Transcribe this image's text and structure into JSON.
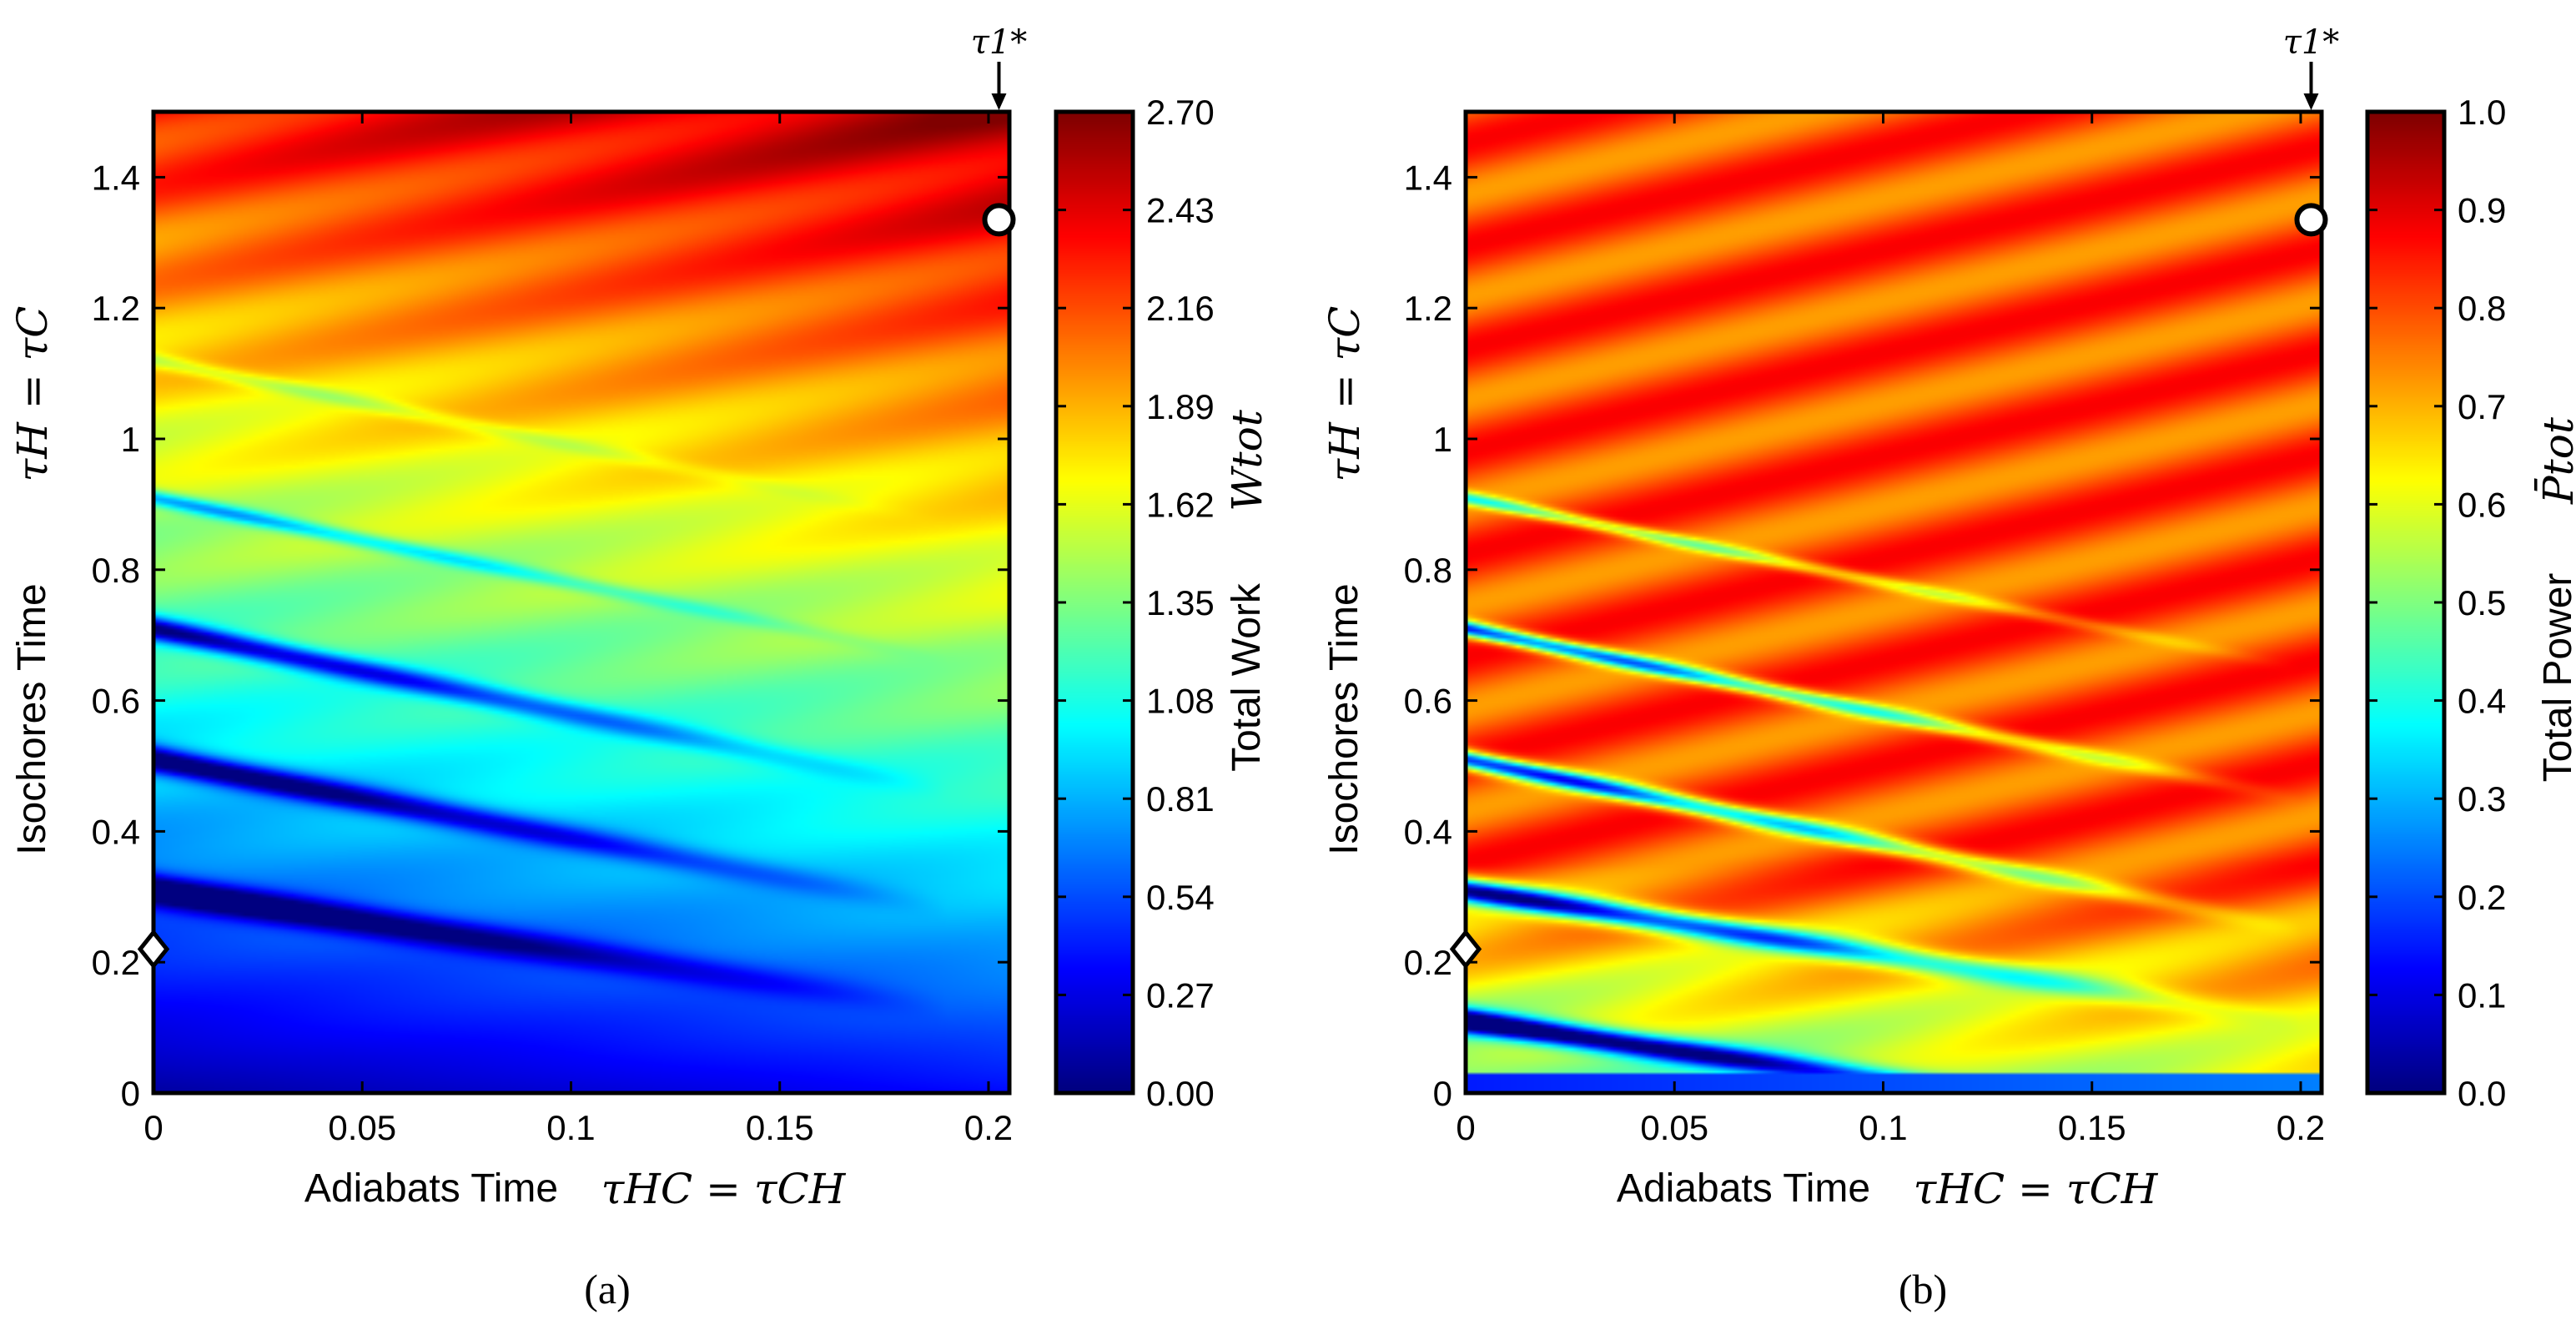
{
  "chart_data": [
    {
      "type": "heatmap",
      "panel": "(a)",
      "xlabel": "Adiabats Time",
      "xlabel_math": "τHC = τCH",
      "ylabel": "Isochores Time",
      "ylabel_math": "τH = τC",
      "xlim": [
        0,
        0.205
      ],
      "ylim": [
        0,
        1.5
      ],
      "x_ticks": [
        "0",
        "0.05",
        "0.1",
        "0.15",
        "0.2"
      ],
      "x_tick_values": [
        0,
        0.05,
        0.1,
        0.15,
        0.2
      ],
      "y_ticks": [
        "0",
        "0.2",
        "0.4",
        "0.6",
        "0.8",
        "1",
        "1.2",
        "1.4"
      ],
      "y_tick_values": [
        0,
        0.2,
        0.4,
        0.6,
        0.8,
        1.0,
        1.2,
        1.4
      ],
      "colorbar": {
        "label": "Total Work",
        "label_math": "Wtot",
        "range": [
          0,
          2.7
        ],
        "ticks": [
          "0.00",
          "0.27",
          "0.54",
          "0.81",
          "1.08",
          "1.35",
          "1.62",
          "1.89",
          "2.16",
          "2.43",
          "2.70"
        ],
        "tick_values": [
          0,
          0.27,
          0.54,
          0.81,
          1.08,
          1.35,
          1.62,
          1.89,
          2.16,
          2.43,
          2.7
        ]
      },
      "markers": [
        {
          "shape": "diamond",
          "x": 0,
          "y": 0.22
        },
        {
          "shape": "circle",
          "x": 0.2025,
          "y": 1.335
        }
      ],
      "annotation": {
        "text": "τ1*",
        "x": 0.2025
      }
    },
    {
      "type": "heatmap",
      "panel": "(b)",
      "xlabel": "Adiabats Time",
      "xlabel_math": "τHC = τCH",
      "ylabel": "Isochores Time",
      "ylabel_math": "τH = τC",
      "xlim": [
        0,
        0.205
      ],
      "ylim": [
        0,
        1.5
      ],
      "x_ticks": [
        "0",
        "0.05",
        "0.1",
        "0.15",
        "0.2"
      ],
      "x_tick_values": [
        0,
        0.05,
        0.1,
        0.15,
        0.2
      ],
      "y_ticks": [
        "0",
        "0.2",
        "0.4",
        "0.6",
        "0.8",
        "1",
        "1.2",
        "1.4"
      ],
      "y_tick_values": [
        0,
        0.2,
        0.4,
        0.6,
        0.8,
        1.0,
        1.2,
        1.4
      ],
      "colorbar": {
        "label": "Total Power",
        "label_math": "P̄tot",
        "range": [
          0,
          1.0
        ],
        "ticks": [
          "0.0",
          "0.1",
          "0.2",
          "0.3",
          "0.4",
          "0.5",
          "0.6",
          "0.7",
          "0.8",
          "0.9",
          "1.0"
        ],
        "tick_values": [
          0,
          0.1,
          0.2,
          0.3,
          0.4,
          0.5,
          0.6,
          0.7,
          0.8,
          0.9,
          1.0
        ]
      },
      "markers": [
        {
          "shape": "diamond",
          "x": 0,
          "y": 0.22
        },
        {
          "shape": "circle",
          "x": 0.2025,
          "y": 1.335
        }
      ],
      "annotation": {
        "text": "τ1*",
        "x": 0.2025
      }
    }
  ],
  "colors": {
    "jet": [
      "#00007f",
      "#0000ff",
      "#007fff",
      "#00ffff",
      "#7fff7f",
      "#ffff00",
      "#ff7f00",
      "#ff0000",
      "#7f0000"
    ],
    "axis": "#000000",
    "marker_fill": "#ffffff"
  }
}
